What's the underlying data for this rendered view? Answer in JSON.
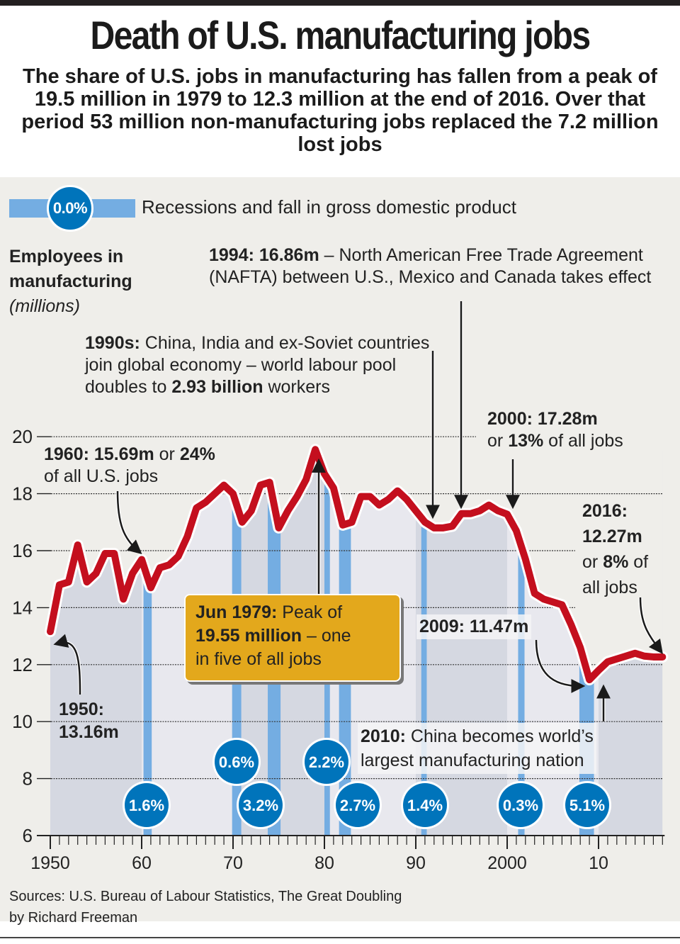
{
  "header": {
    "title": "Death of U.S. manufacturing jobs",
    "subtitle": "The share of U.S. jobs in manufacturing has fallen from a peak of 19.5 million in 1979 to 12.3 million at the end of 2016. Over that period 53 million non-manufacturing jobs replaced the 7.2 million lost jobs"
  },
  "legend": {
    "badge": "0.0%",
    "label": "Recessions and fall in gross domestic product"
  },
  "colors": {
    "line": "#c40f1e",
    "recession": "#74ade2",
    "badge": "#0074bb",
    "callout": "#e3a81c",
    "decade_dark": "#d5d8e1",
    "decade_light": "#e8e8ee",
    "panel": "#efeeea"
  },
  "annotations": {
    "y_title_bold_1": "Employees in",
    "y_title_bold_2": "manufacturing",
    "y_title_unit": "(millions)",
    "nafta_bold": "1994: 16.86m",
    "nafta_text": " – North American Free Trade Agreement (NAFTA) between U.S., Mexico and Canada takes effect",
    "nineties_bold": "1990s:",
    "nineties_text": " China, India and ex-Soviet countries join global economy – world labour pool doubles to ",
    "nineties_bold2": "2.93 billion",
    "nineties_text2": " workers",
    "y1960_bold": "1960: 15.69m",
    "y1960_or": " or ",
    "y1960_pct": "24%",
    "y1960_text": "of all U.S. jobs",
    "y2000_bold": "2000: 17.28m",
    "y2000_or": "or ",
    "y2000_pct": "13%",
    "y2000_text": " of all jobs",
    "y2016_bold1": "2016:",
    "y2016_bold2": "12.27m",
    "y2016_or": "or ",
    "y2016_pct": "8%",
    "y2016_text1": " of",
    "y2016_text2": "all jobs",
    "peak_bold1": "Jun 1979:",
    "peak_text1": " Peak of",
    "peak_bold2": "19.55 million",
    "peak_text2": " – one",
    "peak_text3": "in five of all jobs",
    "y2009": "2009: 11.47m",
    "y1950_bold1": "1950:",
    "y1950_bold2": "13.16m",
    "y2010_bold": "2010:",
    "y2010_text1": " China becomes world’s",
    "y2010_text2": "largest manufacturing nation"
  },
  "source": {
    "line1": "Sources: U.S. Bureau of Labour Statistics, The Great Doubling",
    "line2": "by Richard Freeman"
  },
  "chart_data": {
    "type": "line",
    "title": "Death of U.S. manufacturing jobs",
    "ylabel": "Employees in manufacturing (millions)",
    "xlabel": "",
    "ylim": [
      6,
      20
    ],
    "xlim": [
      1950,
      2017
    ],
    "yticks": [
      "6",
      "8",
      "10",
      "12",
      "14",
      "16",
      "18",
      "20"
    ],
    "xticks": [
      {
        "year": 1950,
        "label": "1950"
      },
      {
        "year": 1960,
        "label": "60"
      },
      {
        "year": 1970,
        "label": "70"
      },
      {
        "year": 1980,
        "label": "80"
      },
      {
        "year": 1990,
        "label": "90"
      },
      {
        "year": 2000,
        "label": "2000"
      },
      {
        "year": 2010,
        "label": "10"
      }
    ],
    "grid": true,
    "series": [
      {
        "name": "Employees in manufacturing",
        "x": [
          1950,
          1951,
          1952,
          1953,
          1954,
          1955,
          1956,
          1957,
          1958,
          1959,
          1960,
          1961,
          1962,
          1963,
          1964,
          1965,
          1966,
          1967,
          1968,
          1969,
          1970,
          1971,
          1972,
          1973,
          1974,
          1975,
          1976,
          1977,
          1978,
          1979,
          1980,
          1981,
          1982,
          1983,
          1984,
          1985,
          1986,
          1987,
          1988,
          1989,
          1990,
          1991,
          1992,
          1993,
          1994,
          1995,
          1996,
          1997,
          1998,
          1999,
          2000,
          2001,
          2002,
          2003,
          2004,
          2005,
          2006,
          2007,
          2008,
          2009,
          2010,
          2011,
          2012,
          2013,
          2014,
          2015,
          2016,
          2017
        ],
        "values": [
          13.16,
          14.8,
          14.9,
          16.2,
          14.9,
          15.2,
          15.9,
          15.9,
          14.3,
          15.2,
          15.69,
          14.7,
          15.4,
          15.5,
          15.8,
          16.5,
          17.5,
          17.7,
          18.0,
          18.3,
          18.0,
          17.0,
          17.4,
          18.3,
          18.4,
          16.8,
          17.4,
          17.9,
          18.5,
          19.55,
          18.7,
          18.2,
          16.9,
          17.0,
          17.9,
          17.9,
          17.6,
          17.8,
          18.1,
          17.8,
          17.4,
          17.0,
          16.8,
          16.8,
          16.86,
          17.3,
          17.3,
          17.4,
          17.6,
          17.4,
          17.28,
          16.7,
          15.7,
          14.5,
          14.3,
          14.2,
          14.1,
          13.4,
          12.6,
          11.47,
          11.8,
          12.1,
          12.2,
          12.3,
          12.4,
          12.3,
          12.27,
          12.27
        ]
      }
    ],
    "recessions": [
      {
        "start": 1960.2,
        "end": 1961.1,
        "gdp_fall": "1.6%"
      },
      {
        "start": 1969.9,
        "end": 1970.9,
        "gdp_fall": "0.6%"
      },
      {
        "start": 1973.8,
        "end": 1975.2,
        "gdp_fall": "3.2%"
      },
      {
        "start": 1980.0,
        "end": 1980.6,
        "gdp_fall": "2.2%"
      },
      {
        "start": 1981.6,
        "end": 1982.9,
        "gdp_fall": "2.7%"
      },
      {
        "start": 1990.6,
        "end": 1991.2,
        "gdp_fall": "1.4%"
      },
      {
        "start": 2001.2,
        "end": 2001.9,
        "gdp_fall": "0.3%"
      },
      {
        "start": 2007.9,
        "end": 2009.5,
        "gdp_fall": "5.1%"
      }
    ]
  }
}
